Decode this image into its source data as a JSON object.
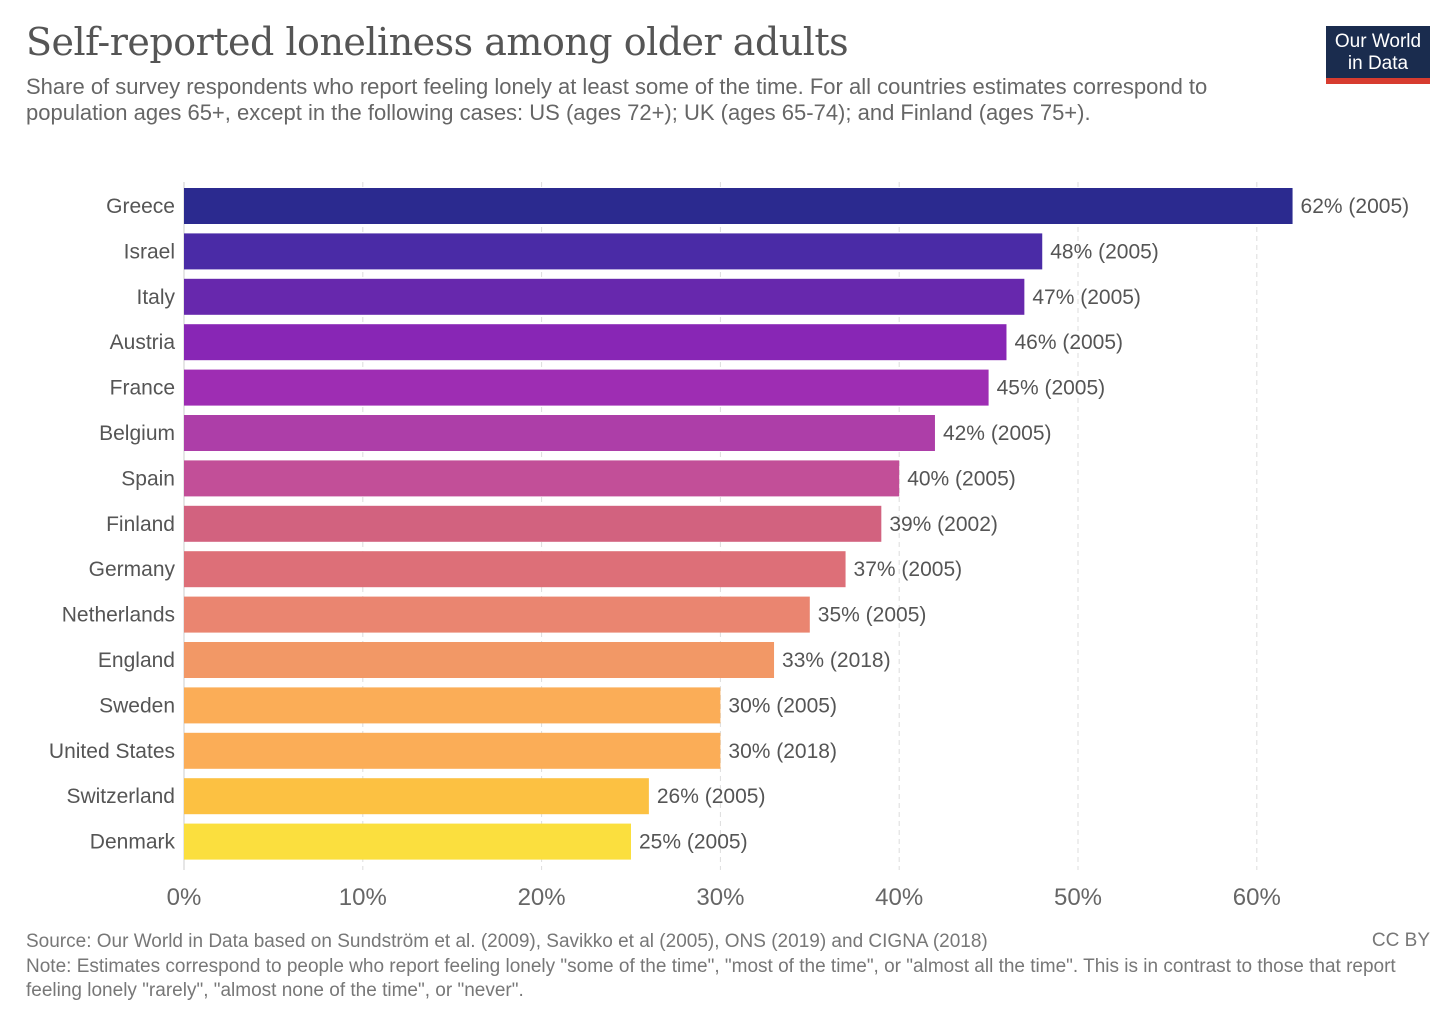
{
  "header": {
    "title": "Self-reported loneliness among older adults",
    "subtitle": "Share of survey respondents who report feeling lonely at least some of the time. For all countries estimates correspond to population ages 65+, except in the following cases: US (ages 72+); UK (ages 65-74); and Finland (ages 75+).",
    "logo_line1": "Our World",
    "logo_line2": "in Data"
  },
  "footer": {
    "source": "Source: Our World in Data based on Sundström et al. (2009), Savikko et al (2005), ONS (2019) and CIGNA (2018)",
    "license": "CC BY",
    "note": "Note: Estimates correspond to people who report feeling lonely \"some of the time\", \"most of the time\", or \"almost all the time\". This is in contrast to those that report feeling lonely \"rarely\", \"almost none of the time\", or \"never\"."
  },
  "colors": {
    "logo_bg": "#1a2c4e",
    "logo_accent": "#d73c2f",
    "gridline": "#dddddd",
    "axis_label": "#666666",
    "value_label": "#555555"
  },
  "chart_data": {
    "type": "bar",
    "orientation": "horizontal",
    "title": "Self-reported loneliness among older adults",
    "xlim": [
      0,
      62
    ],
    "x_ticks": [
      0,
      10,
      20,
      30,
      40,
      50,
      60
    ],
    "x_tick_labels": [
      "0%",
      "10%",
      "20%",
      "30%",
      "40%",
      "50%",
      "60%"
    ],
    "grid": "vertical dashed",
    "categories": [
      "Greece",
      "Israel",
      "Italy",
      "Austria",
      "France",
      "Belgium",
      "Spain",
      "Finland",
      "Germany",
      "Netherlands",
      "England",
      "Sweden",
      "United States",
      "Switzerland",
      "Denmark"
    ],
    "values": [
      62,
      48,
      47,
      46,
      45,
      42,
      40,
      39,
      37,
      35,
      33,
      30,
      30,
      26,
      25
    ],
    "years": [
      "2005",
      "2005",
      "2005",
      "2005",
      "2005",
      "2005",
      "2005",
      "2002",
      "2005",
      "2005",
      "2018",
      "2005",
      "2018",
      "2005",
      "2005"
    ],
    "value_labels": [
      "62% (2005)",
      "48% (2005)",
      "47% (2005)",
      "46% (2005)",
      "45% (2005)",
      "42% (2005)",
      "40% (2005)",
      "39% (2002)",
      "37% (2005)",
      "35% (2005)",
      "33% (2018)",
      "30% (2005)",
      "30% (2018)",
      "26% (2005)",
      "25% (2005)"
    ],
    "bar_colors": [
      "#2b2a8f",
      "#4a2ba6",
      "#6728ad",
      "#8826b5",
      "#9e2db3",
      "#ad3ea8",
      "#c24f98",
      "#d2627f",
      "#dd6f78",
      "#ea8570",
      "#f29866",
      "#fbad57",
      "#fbad57",
      "#fcc142",
      "#fbdf3e"
    ]
  }
}
